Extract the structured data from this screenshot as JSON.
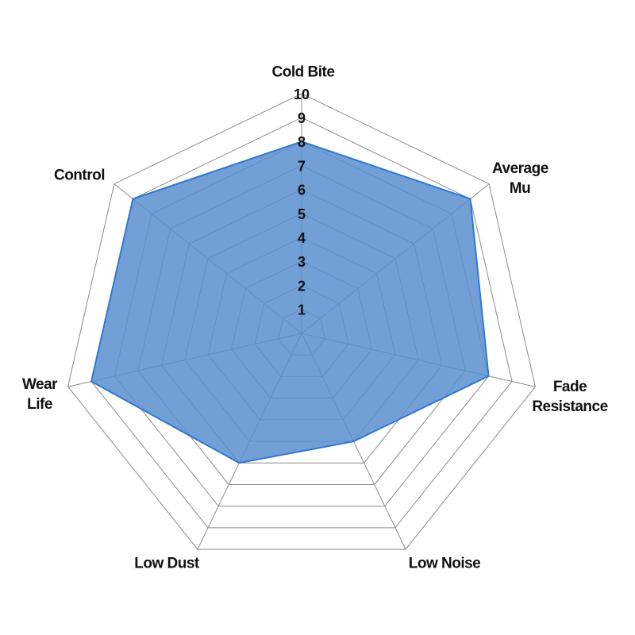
{
  "chart_data": {
    "type": "radar",
    "categories": [
      "Cold Bite",
      "Average Mu",
      "Fade Resistance",
      "Low Noise",
      "Low Dust",
      "Wear Life",
      "Control"
    ],
    "values": [
      8,
      9,
      8,
      5,
      6,
      9,
      9
    ],
    "color": "#5b8ed0",
    "rlim": [
      0,
      10
    ],
    "rticks": [
      1,
      2,
      3,
      4,
      5,
      6,
      7,
      8,
      9,
      10
    ],
    "grid": true
  }
}
